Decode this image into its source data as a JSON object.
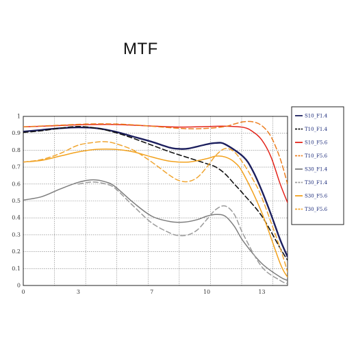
{
  "chart_data": {
    "type": "line",
    "title": "MTF",
    "xlabel": "",
    "ylabel": "",
    "xlim": [
      0,
      14.4
    ],
    "ylim": [
      0,
      1
    ],
    "x_ticks": [
      {
        "value": 0,
        "label": "0"
      },
      {
        "value": 3,
        "label": "3"
      },
      {
        "value": 7,
        "label": "7"
      },
      {
        "value": 10,
        "label": "10"
      },
      {
        "value": 13,
        "label": "13"
      }
    ],
    "y_ticks": [
      {
        "value": 0,
        "label": "0"
      },
      {
        "value": 0.1,
        "label": "0.1"
      },
      {
        "value": 0.2,
        "label": "0.2"
      },
      {
        "value": 0.3,
        "label": "0.3"
      },
      {
        "value": 0.4,
        "label": "0.4"
      },
      {
        "value": 0.5,
        "label": "0.5"
      },
      {
        "value": 0.6,
        "label": "0.6"
      },
      {
        "value": 0.7,
        "label": "0.7"
      },
      {
        "value": 0.8,
        "label": "0.8"
      },
      {
        "value": 0.9,
        "label": "0.9"
      },
      {
        "value": 1,
        "label": "1"
      }
    ],
    "grid": true,
    "legend_position": "right",
    "series": [
      {
        "name": "S10_F1.4",
        "color": "#1c1f5e",
        "dash": false,
        "x": [
          0,
          1,
          2,
          3,
          4,
          5,
          6,
          7,
          8,
          8.5,
          9,
          10,
          10.5,
          11,
          12,
          12.5,
          13,
          13.5,
          14,
          14.4
        ],
        "y": [
          0.91,
          0.92,
          0.93,
          0.935,
          0.93,
          0.91,
          0.88,
          0.85,
          0.815,
          0.808,
          0.81,
          0.835,
          0.843,
          0.835,
          0.76,
          0.68,
          0.56,
          0.42,
          0.27,
          0.17
        ]
      },
      {
        "name": "T10_F1.4",
        "color": "#111111",
        "dash": true,
        "x": [
          0,
          1,
          2,
          3,
          4,
          5,
          6,
          7,
          8,
          9,
          10,
          10.5,
          11,
          11.5,
          12,
          13,
          14,
          14.4
        ],
        "y": [
          0.905,
          0.915,
          0.93,
          0.94,
          0.93,
          0.905,
          0.87,
          0.83,
          0.79,
          0.755,
          0.72,
          0.7,
          0.66,
          0.6,
          0.54,
          0.41,
          0.22,
          0.15
        ]
      },
      {
        "name": "S10_F5.6",
        "color": "#e3241b",
        "dash": false,
        "x": [
          0,
          1,
          2,
          3,
          4,
          5,
          6,
          7,
          8,
          9,
          10,
          11,
          12,
          12.5,
          13,
          13.5,
          14,
          14.4
        ],
        "y": [
          0.938,
          0.942,
          0.946,
          0.95,
          0.952,
          0.952,
          0.948,
          0.943,
          0.938,
          0.937,
          0.94,
          0.942,
          0.935,
          0.91,
          0.86,
          0.76,
          0.6,
          0.49
        ]
      },
      {
        "name": "T10_F5.6",
        "color": "#ec7d1e",
        "dash": true,
        "x": [
          0,
          1,
          2,
          3,
          4,
          5,
          6,
          7,
          8,
          9,
          10,
          11,
          11.5,
          12,
          12.5,
          13,
          13.5,
          14,
          14.4
        ],
        "y": [
          0.938,
          0.943,
          0.948,
          0.953,
          0.956,
          0.955,
          0.95,
          0.942,
          0.933,
          0.927,
          0.929,
          0.94,
          0.955,
          0.968,
          0.968,
          0.945,
          0.88,
          0.75,
          0.6
        ]
      },
      {
        "name": "S30_F1.4",
        "color": "#7d7d7d",
        "dash": false,
        "x": [
          0,
          1,
          2,
          3,
          3.8,
          4.5,
          5,
          6,
          7,
          8,
          8.8,
          9.5,
          10,
          10.5,
          11,
          11.5,
          12,
          13,
          14,
          14.4
        ],
        "y": [
          0.505,
          0.525,
          0.57,
          0.61,
          0.625,
          0.612,
          0.585,
          0.49,
          0.41,
          0.378,
          0.375,
          0.39,
          0.41,
          0.42,
          0.41,
          0.35,
          0.26,
          0.13,
          0.05,
          0.03
        ]
      },
      {
        "name": "T30_F1.4",
        "color": "#9a9a9a",
        "dash": true,
        "x": [
          3,
          3.8,
          4.5,
          5,
          6,
          7,
          8,
          8.5,
          9,
          9.5,
          10,
          10.5,
          11,
          11.5,
          12,
          13,
          14,
          14.4
        ],
        "y": [
          0.6,
          0.612,
          0.6,
          0.575,
          0.47,
          0.37,
          0.31,
          0.295,
          0.3,
          0.33,
          0.39,
          0.45,
          0.47,
          0.42,
          0.3,
          0.11,
          0.03,
          0.01
        ]
      },
      {
        "name": "S30_F5.6",
        "color": "#f2a11c",
        "dash": false,
        "x": [
          0,
          1,
          2,
          3,
          4,
          5,
          6,
          7,
          8,
          9,
          10,
          10.5,
          11,
          11.5,
          12,
          13,
          14,
          14.4
        ],
        "y": [
          0.73,
          0.74,
          0.765,
          0.79,
          0.805,
          0.805,
          0.79,
          0.76,
          0.735,
          0.73,
          0.75,
          0.765,
          0.76,
          0.73,
          0.66,
          0.43,
          0.13,
          0.05
        ]
      },
      {
        "name": "T30_F5.6",
        "color": "#f0a530",
        "dash": true,
        "x": [
          0,
          1,
          2,
          3,
          4,
          4.5,
          5,
          6,
          7,
          8,
          8.5,
          9,
          9.5,
          10,
          10.5,
          11,
          11.5,
          12,
          12.5,
          13,
          14,
          14.4
        ],
        "y": [
          0.73,
          0.745,
          0.78,
          0.83,
          0.848,
          0.85,
          0.84,
          0.8,
          0.73,
          0.65,
          0.62,
          0.615,
          0.64,
          0.7,
          0.77,
          0.81,
          0.79,
          0.72,
          0.63,
          0.52,
          0.22,
          0.08
        ]
      }
    ]
  }
}
